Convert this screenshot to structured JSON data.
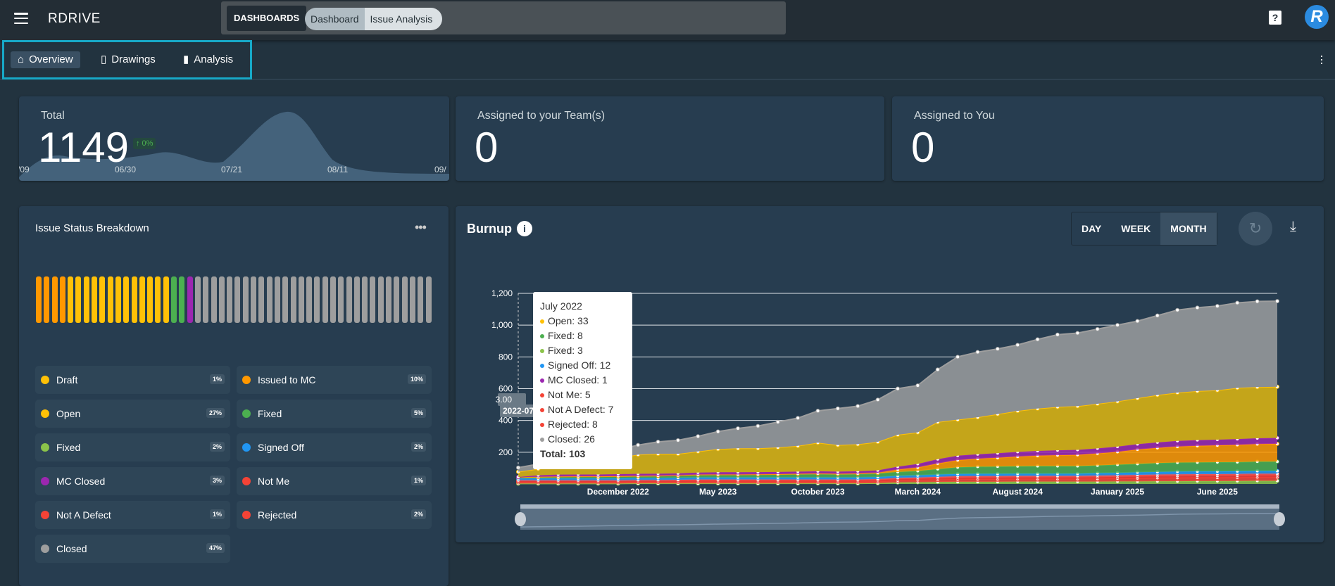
{
  "header": {
    "logo": "RDRIVE",
    "dashboards_label": "DASHBOARDS",
    "breadcrumb": [
      "Dashboard",
      "Issue Analysis"
    ],
    "help_icon": "?",
    "avatar_letter": "R"
  },
  "tabs": [
    {
      "label": "Overview",
      "icon": "home-icon",
      "active": true
    },
    {
      "label": "Drawings",
      "icon": "map-icon",
      "active": false
    },
    {
      "label": "Analysis",
      "icon": "bar-chart-icon",
      "active": false
    }
  ],
  "kpis": {
    "total": {
      "label": "Total",
      "value": "1149",
      "change": "↑ 0%",
      "ticks": [
        "/09",
        "06/30",
        "07/21",
        "08/11",
        "09/"
      ]
    },
    "team": {
      "label": "Assigned to your Team(s)",
      "value": "0"
    },
    "you": {
      "label": "Assigned to You",
      "value": "0"
    }
  },
  "breakdown": {
    "title": "Issue Status Breakdown",
    "bar_colors": {
      "issued": "#ff9800",
      "open": "#ffc107",
      "fixed": "#4caf50",
      "mc": "#9c27b0",
      "closed": "#9e9e9e"
    },
    "bar_counts": {
      "issued": 4,
      "open": 13,
      "fixed": 2,
      "mc": 1,
      "closed": 30
    },
    "items": [
      {
        "label": "Draft",
        "pct": "1%",
        "color": "#ffc107"
      },
      {
        "label": "Issued to MC",
        "pct": "10%",
        "color": "#ff9800"
      },
      {
        "label": "Open",
        "pct": "27%",
        "color": "#ffc107"
      },
      {
        "label": "Fixed",
        "pct": "5%",
        "color": "#4caf50"
      },
      {
        "label": "Fixed",
        "pct": "2%",
        "color": "#8bc34a"
      },
      {
        "label": "Signed Off",
        "pct": "2%",
        "color": "#2196f3"
      },
      {
        "label": "MC Closed",
        "pct": "3%",
        "color": "#9c27b0"
      },
      {
        "label": "Not Me",
        "pct": "1%",
        "color": "#f44336"
      },
      {
        "label": "Not A Defect",
        "pct": "1%",
        "color": "#f44336"
      },
      {
        "label": "Rejected",
        "pct": "2%",
        "color": "#f44336"
      },
      {
        "label": "Closed",
        "pct": "47%",
        "color": "#9e9e9e"
      }
    ]
  },
  "burnup": {
    "title": "Burnup",
    "ranges": [
      "DAY",
      "WEEK",
      "MONTH"
    ],
    "active_range": "MONTH",
    "tooltip": {
      "title": "July 2022",
      "rows": [
        {
          "label": "Open: 33",
          "color": "#ffc107"
        },
        {
          "label": "Fixed: 8",
          "color": "#4caf50"
        },
        {
          "label": "Fixed: 3",
          "color": "#8bc34a"
        },
        {
          "label": "Signed Off: 12",
          "color": "#2196f3"
        },
        {
          "label": "MC Closed: 1",
          "color": "#9c27b0"
        },
        {
          "label": "Not Me: 5",
          "color": "#f44336"
        },
        {
          "label": "Not A Defect: 7",
          "color": "#f44336"
        },
        {
          "label": "Rejected: 8",
          "color": "#f44336"
        },
        {
          "label": "Closed: 26",
          "color": "#9e9e9e"
        }
      ],
      "total": "Total: 103"
    },
    "crosshair_label": "3.00",
    "crosshair_x_label": "2022-07"
  },
  "chart_data": {
    "type": "area",
    "stacked": true,
    "grid": true,
    "ylim": [
      0,
      1200
    ],
    "yticks": [
      "1,200",
      "1,000",
      "800",
      "600",
      "400",
      "200"
    ],
    "xticks": [
      {
        "index": 5,
        "label": "December 2022"
      },
      {
        "index": 10,
        "label": "May 2023"
      },
      {
        "index": 15,
        "label": "October 2023"
      },
      {
        "index": 20,
        "label": "March 2024"
      },
      {
        "index": 25,
        "label": "August 2024"
      },
      {
        "index": 30,
        "label": "January 2025"
      },
      {
        "index": 35,
        "label": "June 2025"
      }
    ],
    "x": [
      "2022-07",
      "2022-08",
      "2022-09",
      "2022-10",
      "2022-11",
      "2022-12",
      "2023-01",
      "2023-02",
      "2023-03",
      "2023-04",
      "2023-05",
      "2023-06",
      "2023-07",
      "2023-08",
      "2023-09",
      "2023-10",
      "2023-11",
      "2023-12",
      "2024-01",
      "2024-02",
      "2024-03",
      "2024-04",
      "2024-05",
      "2024-06",
      "2024-07",
      "2024-08",
      "2024-09",
      "2024-10",
      "2024-11",
      "2024-12",
      "2025-01",
      "2025-02",
      "2025-03",
      "2025-04",
      "2025-05",
      "2025-06",
      "2025-07",
      "2025-08",
      "2025-09"
    ],
    "series": [
      {
        "name": "Fixed",
        "color": "#8bc34a",
        "values": [
          3,
          3,
          3,
          3,
          3,
          3,
          4,
          4,
          4,
          4,
          4,
          4,
          4,
          4,
          4,
          4,
          4,
          4,
          5,
          10,
          11,
          13,
          14,
          14,
          14,
          15,
          15,
          15,
          15,
          15,
          16,
          16,
          17,
          17,
          18,
          18,
          19,
          20,
          20
        ]
      },
      {
        "name": "Rejected",
        "color": "#f44336",
        "values": [
          8,
          8,
          8,
          8,
          8,
          8,
          9,
          9,
          9,
          10,
          10,
          10,
          10,
          10,
          10,
          10,
          10,
          10,
          11,
          12,
          13,
          15,
          16,
          17,
          17,
          17,
          17,
          17,
          17,
          18,
          19,
          20,
          21,
          22,
          22,
          22,
          22,
          23,
          23
        ]
      },
      {
        "name": "Not A Defect",
        "color": "#e53935",
        "values": [
          7,
          7,
          7,
          7,
          7,
          7,
          7,
          7,
          8,
          8,
          8,
          8,
          8,
          8,
          8,
          8,
          8,
          8,
          8,
          9,
          9,
          9,
          10,
          10,
          10,
          10,
          10,
          10,
          10,
          10,
          10,
          11,
          11,
          11,
          11,
          11,
          11,
          11,
          11
        ]
      },
      {
        "name": "Not Me",
        "color": "#ef5350",
        "values": [
          5,
          5,
          5,
          5,
          5,
          5,
          5,
          5,
          5,
          6,
          6,
          6,
          6,
          6,
          6,
          6,
          6,
          6,
          7,
          7,
          8,
          8,
          9,
          9,
          9,
          9,
          9,
          9,
          9,
          10,
          10,
          10,
          11,
          11,
          11,
          11,
          11,
          11,
          11
        ]
      },
      {
        "name": "Signed Off",
        "color": "#2196f3",
        "values": [
          12,
          12,
          12,
          12,
          12,
          12,
          12,
          12,
          13,
          13,
          13,
          13,
          13,
          13,
          13,
          13,
          13,
          13,
          13,
          13,
          13,
          14,
          14,
          14,
          14,
          14,
          14,
          14,
          14,
          15,
          15,
          16,
          16,
          17,
          17,
          17,
          17,
          17,
          17
        ]
      },
      {
        "name": "Fixed",
        "color": "#4caf50",
        "values": [
          8,
          10,
          12,
          13,
          13,
          14,
          14,
          15,
          15,
          18,
          19,
          19,
          19,
          20,
          21,
          22,
          20,
          21,
          22,
          25,
          28,
          35,
          42,
          45,
          46,
          47,
          48,
          48,
          48,
          49,
          52,
          54,
          56,
          57,
          57,
          58,
          58,
          59,
          59
        ]
      },
      {
        "name": "Issued to MC",
        "color": "#ff9800",
        "values": [
          0,
          0,
          0,
          0,
          0,
          0,
          0,
          0,
          0,
          0,
          0,
          0,
          1,
          1,
          2,
          3,
          3,
          4,
          5,
          15,
          22,
          35,
          45,
          50,
          55,
          60,
          65,
          68,
          70,
          75,
          80,
          90,
          95,
          100,
          104,
          106,
          108,
          110,
          112
        ]
      },
      {
        "name": "MC Closed",
        "color": "#9c27b0",
        "values": [
          1,
          10,
          12,
          12,
          12,
          13,
          13,
          13,
          13,
          13,
          14,
          14,
          14,
          14,
          14,
          14,
          14,
          14,
          15,
          18,
          22,
          27,
          28,
          28,
          29,
          30,
          30,
          31,
          32,
          32,
          33,
          34,
          35,
          36,
          36,
          36,
          37,
          37,
          37
        ]
      },
      {
        "name": "Open",
        "color": "#ffc107",
        "values": [
          33,
          40,
          51,
          65,
          85,
          103,
          121,
          125,
          123,
          133,
          146,
          151,
          150,
          154,
          162,
          180,
          167,
          170,
          179,
          201,
          199,
          234,
          227,
          233,
          246,
          258,
          267,
          273,
          275,
          281,
          285,
          289,
          298,
          304,
          309,
          311,
          322,
          322,
          322
        ]
      },
      {
        "name": "Closed",
        "color": "#9e9e9e",
        "values": [
          26,
          30,
          35,
          40,
          45,
          50,
          60,
          75,
          85,
          95,
          110,
          125,
          140,
          160,
          175,
          200,
          230,
          240,
          265,
          290,
          295,
          330,
          395,
          410,
          410,
          415,
          435,
          455,
          460,
          470,
          480,
          485,
          500,
          520,
          525,
          530,
          535,
          539,
          539
        ]
      }
    ]
  }
}
